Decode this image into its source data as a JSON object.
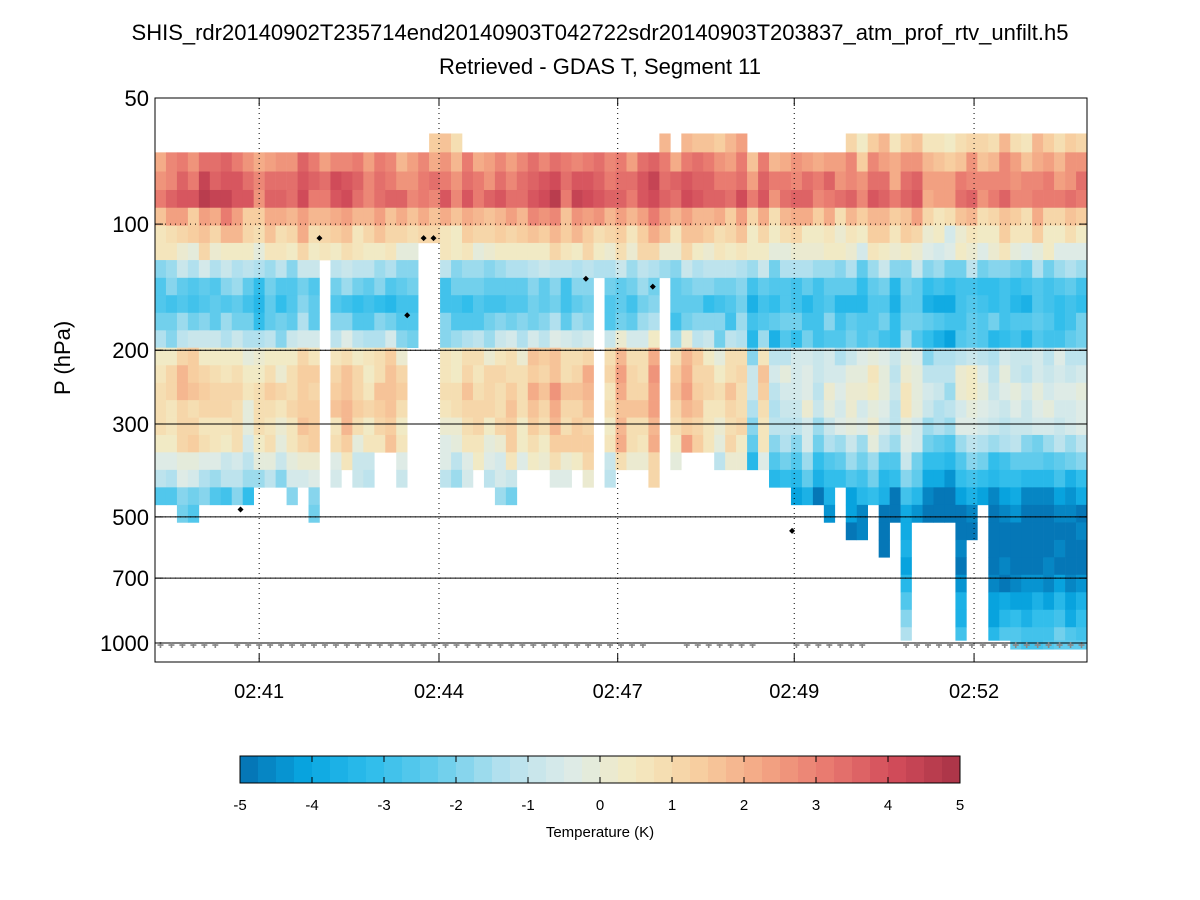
{
  "chart_data": {
    "type": "heatmap",
    "title": "SHIS_rdr20140902T235714end20140903T042722sdr20140903T203837_atm_prof_rtv_unfilt.h5",
    "subtitle": "Retrieved - GDAS T, Segment 11",
    "xlabel": "",
    "ylabel": "P (hPa)",
    "yscale": "log",
    "ylim": [
      50,
      1110
    ],
    "yreverse": true,
    "yticks": [
      50,
      100,
      200,
      300,
      500,
      700,
      1000
    ],
    "ytick_labels": [
      "50",
      "100",
      "200",
      "300",
      "500",
      "700",
      "1000"
    ],
    "y_gridlines_solid": [
      200,
      300,
      500,
      700,
      1000
    ],
    "y_gridlines_dotted": [
      100,
      200,
      300,
      500,
      700
    ],
    "xticks": [
      "02:41",
      "02:44",
      "02:47",
      "02:49",
      "02:52"
    ],
    "xtick_columns": [
      9.5,
      25.9,
      42.2,
      58.3,
      74.7
    ],
    "n_columns": 85,
    "colorbar": {
      "label": "Temperature (K)",
      "min": -5,
      "max": 5,
      "ticks": [
        -5,
        -4,
        -3,
        -2,
        -1,
        0,
        1,
        2,
        3,
        4,
        5
      ],
      "orientation": "horizontal",
      "placement": "bottom",
      "colormap": [
        "#0570b0",
        "#08a5e0",
        "#2fbdeb",
        "#66cdec",
        "#b2e0ee",
        "#dcebe9",
        "#f3eac2",
        "#f7cfa0",
        "#f3a583",
        "#e8786f",
        "#d24c5a",
        "#a83246"
      ]
    },
    "levels_hPa": [
      64,
      71,
      79,
      87,
      96,
      106,
      116,
      128,
      141,
      155,
      171,
      188,
      207,
      228,
      251,
      276,
      304,
      334,
      368,
      405,
      446,
      491,
      541,
      595,
      655,
      721,
      794,
      874,
      962,
      1010
    ],
    "profile_template": [
      1.4,
      2.3,
      2.9,
      3.2,
      1.6,
      0.7,
      0.1,
      -1.6,
      -2.6,
      -3.0,
      -2.5,
      -1.7,
      0.2,
      0.6,
      0.8,
      0.6,
      0.3,
      0.0,
      -0.8,
      -1.6,
      -2.6,
      -3.2,
      -3.6,
      -3.6,
      -3.4,
      -2.9,
      -2.4,
      -1.8,
      -1.2,
      -1.0
    ],
    "columns": {
      "top_level": [
        1,
        1,
        1,
        1,
        1,
        1,
        1,
        1,
        1,
        1,
        1,
        1,
        1,
        1,
        1,
        1,
        1,
        1,
        1,
        1,
        1,
        1,
        1,
        1,
        1,
        0,
        0,
        0,
        1,
        1,
        1,
        1,
        1,
        1,
        1,
        1,
        1,
        1,
        1,
        1,
        1,
        1,
        1,
        1,
        1,
        1,
        0,
        1,
        0,
        0,
        0,
        0,
        0,
        0,
        1,
        1,
        1,
        1,
        1,
        1,
        1,
        1,
        1,
        0,
        0,
        0,
        0,
        0,
        0,
        0,
        0,
        0,
        0,
        0,
        0,
        0,
        0,
        0,
        0,
        0,
        0,
        0,
        0,
        0,
        0
      ],
      "bottom_level": [
        20,
        20,
        21,
        21,
        20,
        20,
        20,
        20,
        20,
        19,
        19,
        19,
        20,
        19,
        21,
        19,
        19,
        18,
        19,
        19,
        17,
        17,
        19,
        19,
        19,
        19,
        19,
        19,
        19,
        18,
        19,
        20,
        20,
        18,
        18,
        18,
        19,
        19,
        18,
        19,
        19,
        19,
        18,
        18,
        18,
        19,
        18,
        18,
        17,
        17,
        17,
        18,
        18,
        18,
        18,
        18,
        19,
        19,
        20,
        20,
        20,
        21,
        19,
        22,
        22,
        20,
        23,
        21,
        28,
        21,
        21,
        21,
        21,
        28,
        22,
        20,
        28,
        28,
        29,
        29,
        29,
        29,
        29,
        29,
        29
      ],
      "gap_from_level": [
        null,
        null,
        null,
        null,
        null,
        null,
        null,
        null,
        null,
        null,
        null,
        null,
        null,
        null,
        null,
        7,
        null,
        null,
        null,
        null,
        null,
        null,
        null,
        12,
        6,
        6,
        null,
        null,
        null,
        null,
        null,
        null,
        null,
        null,
        null,
        null,
        null,
        null,
        null,
        null,
        8,
        null,
        null,
        null,
        null,
        null,
        8,
        null,
        null,
        null,
        null,
        null,
        null,
        null,
        null,
        null,
        null,
        null,
        null,
        null,
        null,
        null,
        null,
        null,
        null,
        null,
        null,
        null,
        null,
        null,
        null,
        null,
        null,
        null,
        null,
        null,
        null,
        null,
        null,
        null,
        null,
        null,
        null,
        null,
        null
      ],
      "offset": [
        0.2,
        0.4,
        0.8,
        0.3,
        1.2,
        0.7,
        1.0,
        0.9,
        0.3,
        -0.2,
        0.5,
        0.2,
        0.1,
        1.3,
        0.4,
        0.3,
        0.7,
        0.9,
        0.4,
        0.0,
        0.5,
        0.2,
        0.1,
        0.0,
        0.3,
        0.1,
        0.2,
        0.0,
        0.4,
        0.1,
        0.2,
        0.4,
        0.3,
        0.6,
        0.9,
        0.8,
        1.0,
        0.3,
        0.9,
        1.0,
        0.7,
        0.2,
        0.8,
        0.4,
        1.0,
        1.1,
        0.6,
        0.2,
        0.9,
        0.6,
        0.5,
        0.4,
        0.2,
        0.9,
        -0.3,
        0.5,
        -0.2,
        0.0,
        0.3,
        0.0,
        -0.1,
        0.3,
        -0.2,
        0.1,
        -0.6,
        0.3,
        0.5,
        -0.5,
        0.2,
        0.4,
        -0.6,
        -0.7,
        -0.8,
        -0.2,
        0.1,
        -0.4,
        -0.1,
        0.2,
        -0.3,
        -0.4,
        0.3,
        0.0,
        -0.2,
        0.1,
        0.0
      ],
      "lower_bias": [
        0.0,
        0.1,
        0.3,
        0.5,
        -0.2,
        -0.1,
        -0.3,
        0.1,
        -0.4,
        0.3,
        0.2,
        -0.1,
        0.4,
        0.2,
        0.5,
        0.0,
        0.3,
        0.6,
        0.1,
        0.2,
        0.4,
        0.8,
        0.2,
        0.0,
        0.0,
        0.0,
        0.0,
        0.0,
        0.3,
        0.5,
        0.1,
        0.2,
        0.6,
        -0.2,
        0.4,
        0.2,
        0.8,
        0.5,
        0.3,
        0.6,
        0.0,
        0.2,
        0.9,
        0.3,
        0.2,
        1.2,
        0.0,
        0.3,
        1.0,
        0.5,
        0.2,
        -0.4,
        0.4,
        0.0,
        -1.6,
        0.3,
        -1.5,
        -1.0,
        -1.3,
        -0.8,
        -1.4,
        -1.2,
        -1.0,
        -0.9,
        -0.6,
        -0.5,
        -1.2,
        -1.1,
        -0.3,
        -0.8,
        -1.3,
        -1.4,
        -1.6,
        -0.9,
        -0.8,
        -1.1,
        -1.4,
        -1.3,
        -0.9,
        -1.0,
        -1.4,
        -1.1,
        -0.8,
        -1.2,
        -0.9
      ]
    },
    "markers_black": [
      {
        "time_col": 15.0,
        "p_hPa": 108
      },
      {
        "time_col": 23.0,
        "p_hPa": 165
      },
      {
        "time_col": 24.5,
        "p_hPa": 108
      },
      {
        "time_col": 25.4,
        "p_hPa": 108
      },
      {
        "time_col": 39.3,
        "p_hPa": 135
      },
      {
        "time_col": 45.4,
        "p_hPa": 141
      },
      {
        "time_col": 7.8,
        "p_hPa": 480
      },
      {
        "time_col": 58.1,
        "p_hPa": 540
      }
    ],
    "surface_markers": {
      "p_hPa": 1000,
      "symbol": "grey star",
      "missing_columns": [
        6,
        45,
        46,
        47,
        55,
        56,
        57,
        65,
        66,
        67
      ]
    }
  }
}
